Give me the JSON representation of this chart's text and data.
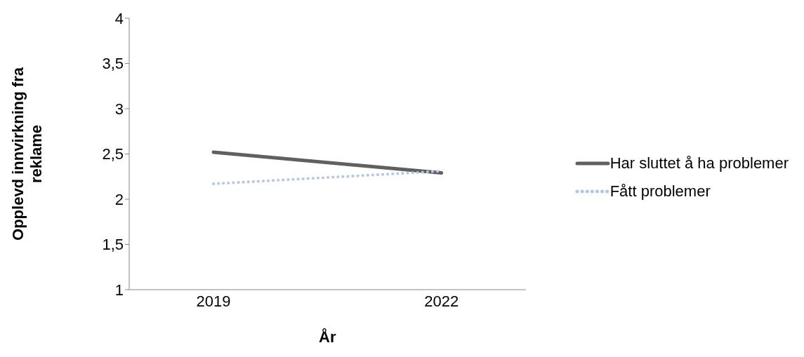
{
  "chart_data": {
    "type": "line",
    "xlabel": "År",
    "ylabel": "Opplevd innvirkning fra reklame",
    "categories": [
      "2019",
      "2022"
    ],
    "series": [
      {
        "name": "Har sluttet å ha problemer",
        "color": "#606060",
        "values": [
          2.52,
          2.29
        ],
        "line_style": "solid"
      },
      {
        "name": "Fått problemer",
        "color": "#b3c7e3",
        "values": [
          2.17,
          2.31
        ],
        "line_style": "dotted"
      }
    ],
    "ylim": [
      1,
      4
    ],
    "yticks": [
      1,
      {
        "value": 1.5,
        "label": "1,5"
      },
      2,
      {
        "value": 2.5,
        "label": "2,5"
      },
      3,
      {
        "value": 3.5,
        "label": "3,5"
      },
      4
    ],
    "grid": false,
    "legend": "right",
    "marker": "none"
  }
}
